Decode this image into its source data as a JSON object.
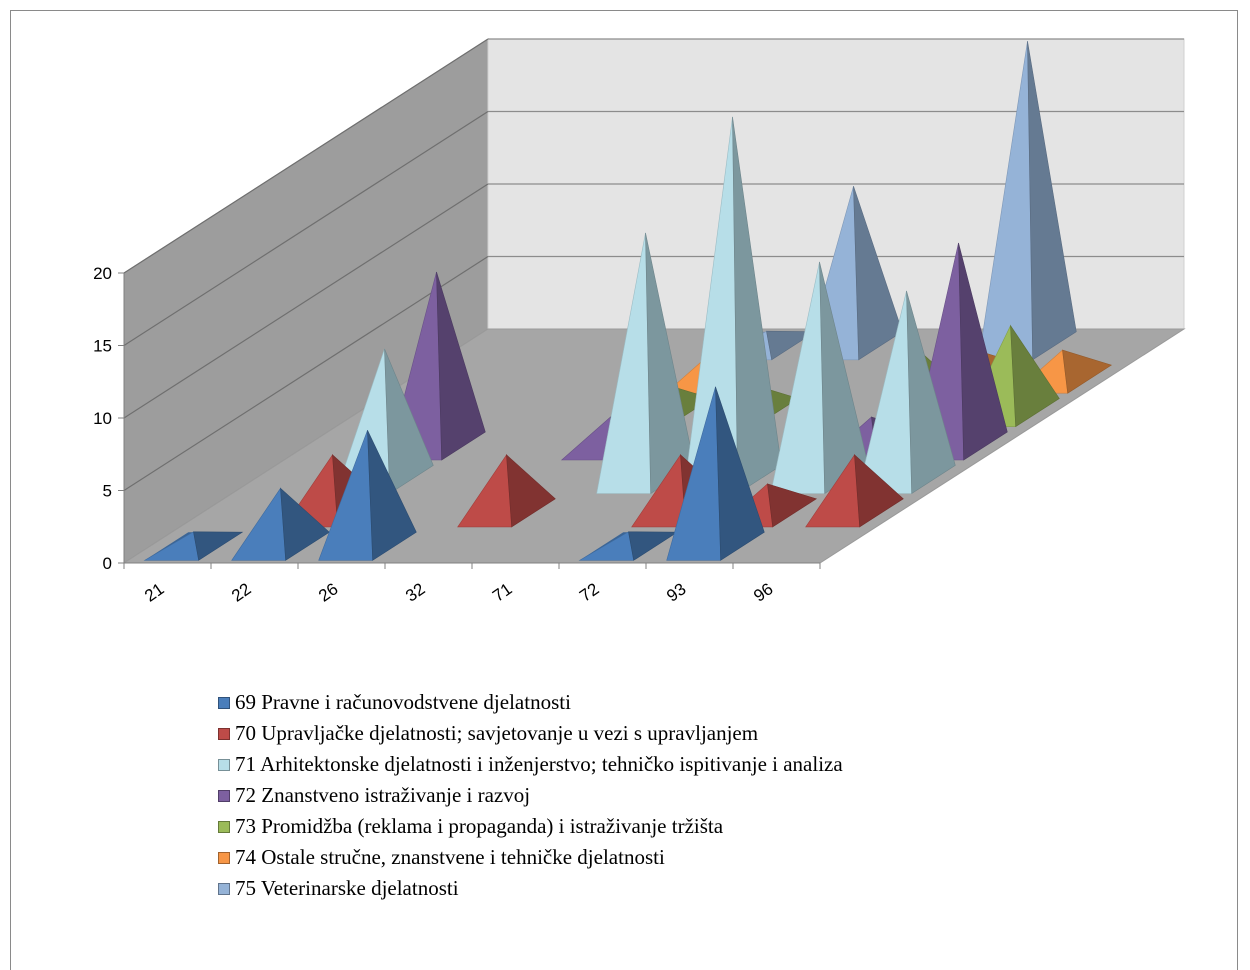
{
  "chart_data": {
    "type": "3d-pyramid",
    "title": "",
    "xlabel": "",
    "ylabel": "",
    "ylim": [
      0,
      20
    ],
    "yticks": [
      0,
      5,
      10,
      15,
      20
    ],
    "grid": true,
    "legend_position": "bottom",
    "categories": [
      "21",
      "22",
      "26",
      "32",
      "71",
      "72",
      "93",
      "96"
    ],
    "series": [
      {
        "name": "69 Pravne i računovodstvene djelatnosti",
        "color": "#4a7ebb",
        "values": [
          1,
          4,
          8,
          0,
          0,
          1,
          11,
          0
        ]
      },
      {
        "name": "70 Upravljačke djelatnosti; savjetovanje u vezi s upravljanjem",
        "color": "#be4b48",
        "values": [
          0,
          4,
          0,
          4,
          0,
          4,
          2,
          4
        ]
      },
      {
        "name": "71 Arhitektonske djelatnosti i inženjerstvo; tehničko ispitivanje i analiza",
        "color": "#b7dee8",
        "values": [
          0,
          9,
          0,
          0,
          17,
          25,
          15,
          13
        ]
      },
      {
        "name": "72 Znanstveno istraživanje i razvoj",
        "color": "#7d60a0",
        "values": [
          0,
          12,
          0,
          2,
          0,
          0,
          2,
          14
        ]
      },
      {
        "name": "73 Promidžba (reklama i propaganda) i istraživanje tržišta",
        "color": "#9bbb59",
        "values": [
          0,
          0,
          0,
          2,
          2,
          0,
          4,
          6
        ]
      },
      {
        "name": "74 Ostale stručne, znanstvene i tehničke djelatnosti",
        "color": "#f79646",
        "values": [
          0,
          0,
          0,
          2,
          0,
          0,
          2,
          2
        ]
      },
      {
        "name": "75 Veterinarske djelatnosti",
        "color": "#95b3d7",
        "values": [
          0,
          0,
          0,
          1,
          11,
          0,
          21,
          0
        ]
      }
    ]
  }
}
